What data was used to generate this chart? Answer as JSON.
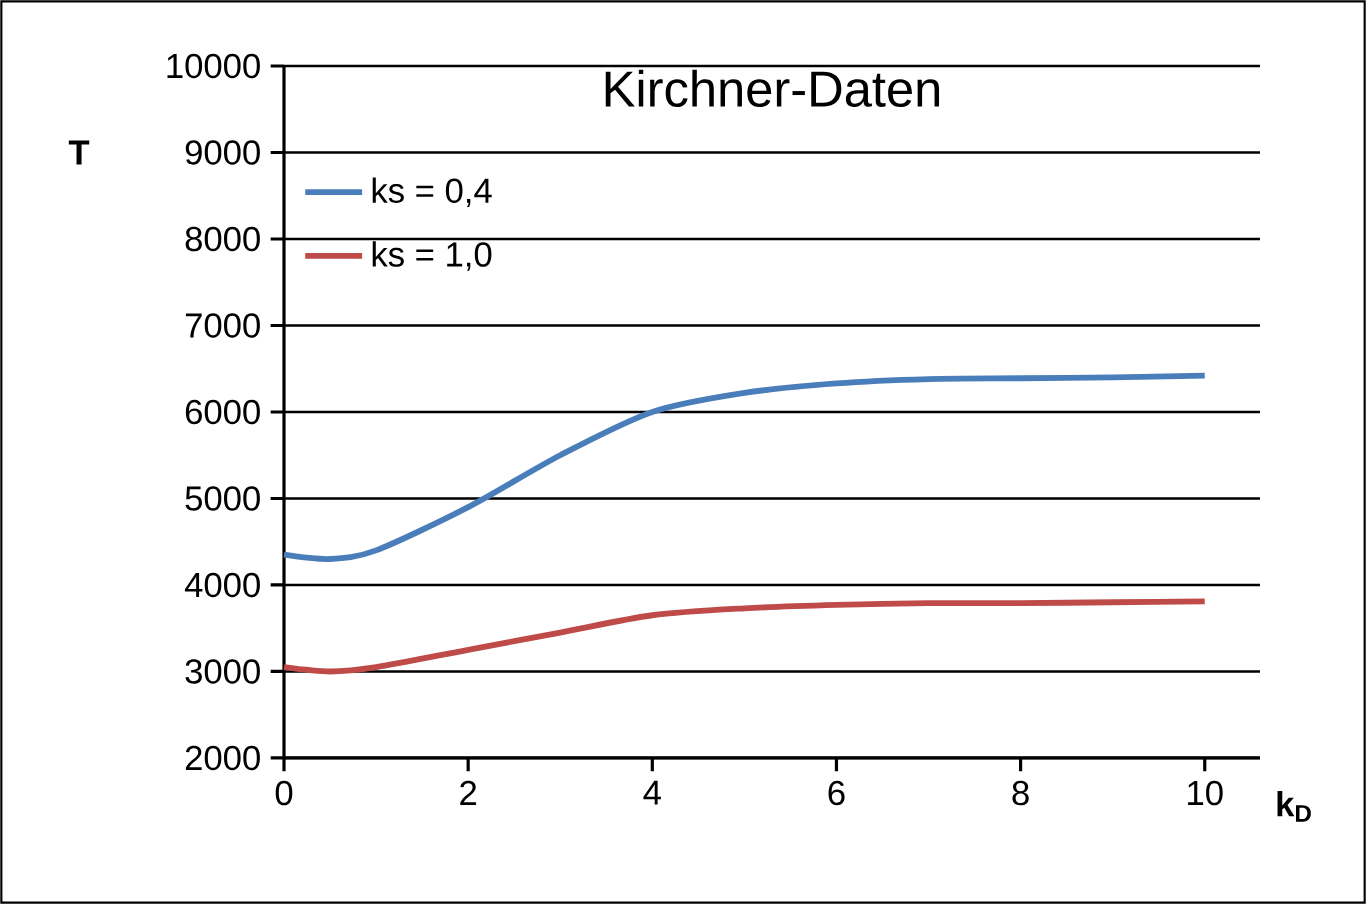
{
  "chart_data": {
    "type": "line",
    "title": "Kirchner-Daten",
    "xlabel": "k$_{D}$",
    "ylabel": "T",
    "x": [
      0,
      0.5,
      1,
      2,
      3,
      4,
      5,
      6,
      7,
      8,
      9,
      10
    ],
    "series": [
      {
        "name": "ks = 0,4",
        "color": "#4a7ebb",
        "values": [
          4350,
          4300,
          4400,
          4900,
          5500,
          6000,
          6220,
          6330,
          6380,
          6390,
          6400,
          6420
        ]
      },
      {
        "name": "ks = 1,0",
        "color": "#be4b48",
        "values": [
          3050,
          3000,
          3050,
          3250,
          3450,
          3650,
          3730,
          3770,
          3790,
          3790,
          3800,
          3810
        ]
      }
    ],
    "xlim": [
      0,
      10.6
    ],
    "ylim": [
      2000,
      10000
    ],
    "xticks": [
      0,
      2,
      4,
      6,
      8,
      10
    ],
    "yticks": [
      2000,
      3000,
      4000,
      5000,
      6000,
      7000,
      8000,
      9000,
      10000
    ],
    "grid": "y",
    "legend": "top left",
    "marker": "none",
    "line_style": "solid"
  }
}
